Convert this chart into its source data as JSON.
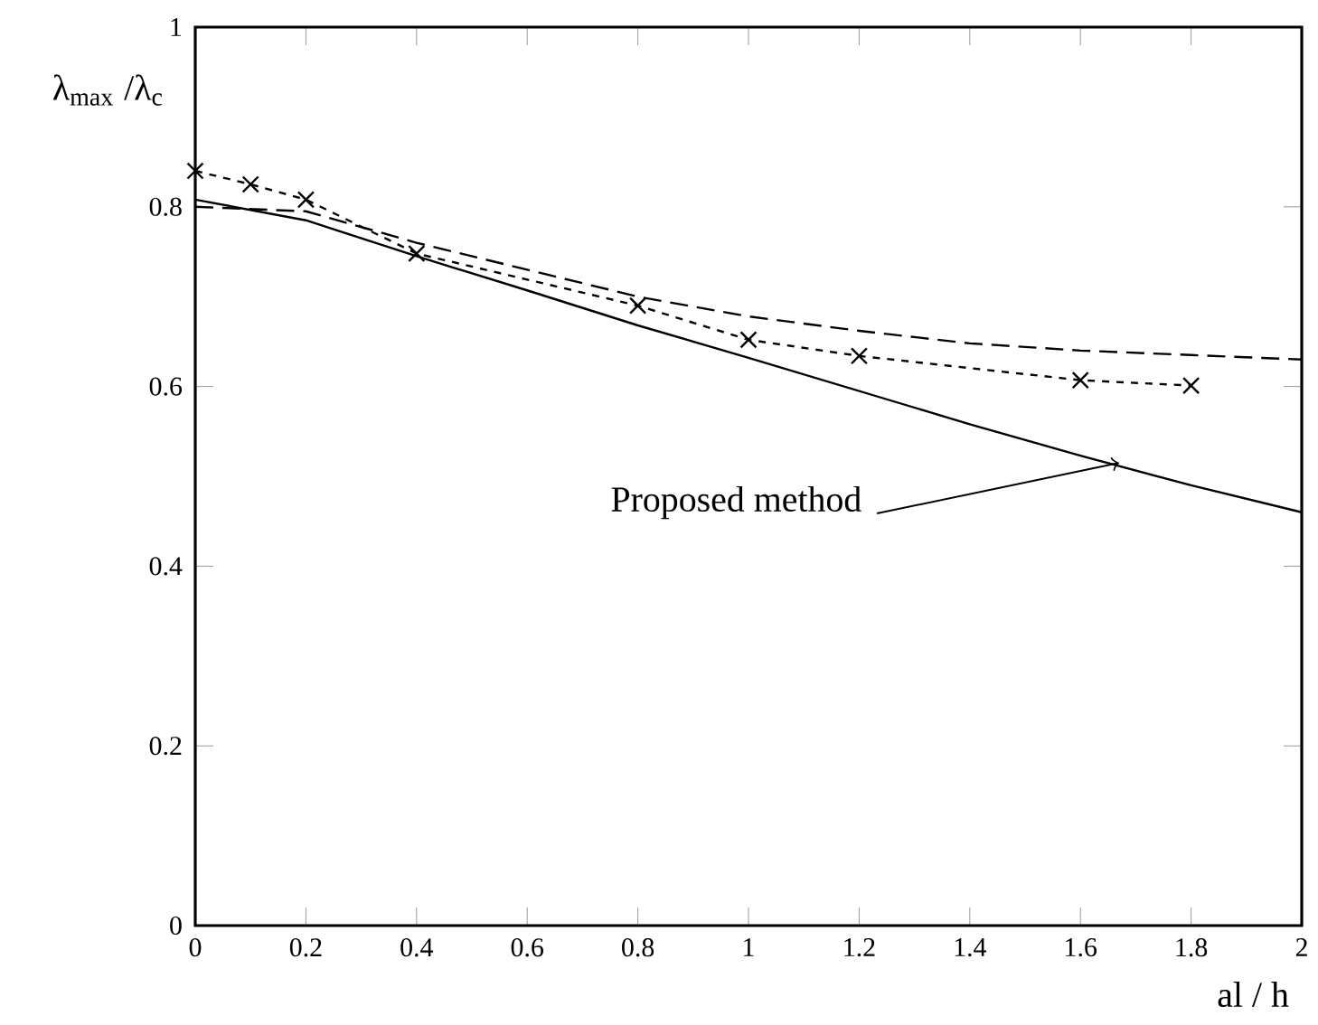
{
  "chart_data": {
    "type": "line",
    "xlabel": "al / h",
    "ylabel": "λ$_{max}$ /λ$_{c}$",
    "xlim": [
      0,
      2
    ],
    "ylim": [
      0,
      1
    ],
    "xticks": [
      0,
      0.2,
      0.4,
      0.6,
      0.8,
      1,
      1.2,
      1.4,
      1.6,
      1.8,
      2
    ],
    "yticks": [
      0,
      0.2,
      0.4,
      0.6,
      0.8,
      1
    ],
    "grid": false,
    "series": [
      {
        "color": "#000000",
        "line_style": "solid",
        "marker": "none",
        "x": [
          0,
          0.2,
          0.4,
          0.6,
          0.8,
          1.0,
          1.2,
          1.4,
          1.6,
          1.8,
          2.0
        ],
        "values": [
          0.808,
          0.785,
          0.745,
          0.707,
          0.668,
          0.632,
          0.595,
          0.558,
          0.523,
          0.49,
          0.46
        ]
      },
      {
        "color": "#000000",
        "line_style": "dashed",
        "marker": "none",
        "x": [
          0,
          0.2,
          0.4,
          0.6,
          0.8,
          1.0,
          1.2,
          1.4,
          1.6,
          1.8,
          2.0
        ],
        "values": [
          0.8,
          0.795,
          0.76,
          0.73,
          0.7,
          0.678,
          0.662,
          0.648,
          0.64,
          0.635,
          0.63
        ]
      },
      {
        "color": "#000000",
        "line_style": "dotted",
        "marker": "cross",
        "x": [
          0,
          0.1,
          0.2,
          0.4,
          0.8,
          1.0,
          1.2,
          1.6,
          1.8
        ],
        "values": [
          0.84,
          0.825,
          0.808,
          0.748,
          0.69,
          0.652,
          0.634,
          0.607,
          0.601
        ]
      }
    ],
    "annotations": [
      {
        "text": "Proposed method",
        "x": 1.67,
        "y": 0.515
      }
    ]
  }
}
